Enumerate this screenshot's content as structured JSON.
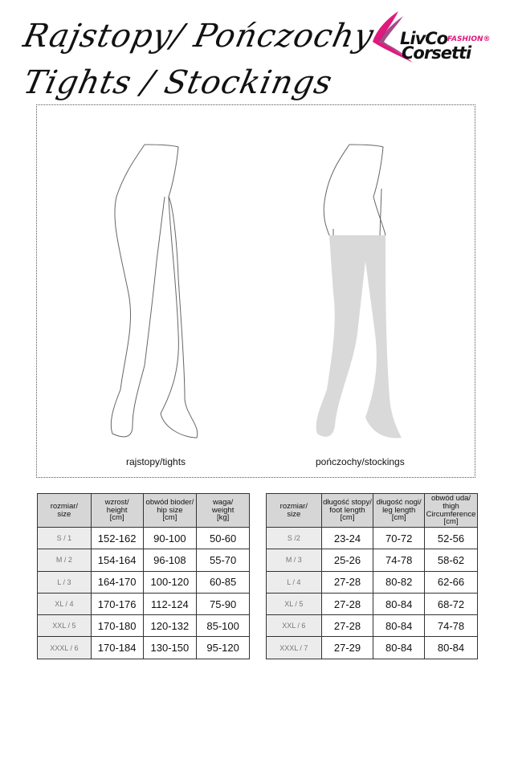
{
  "header": {
    "title_line1": "Rajstopy/ Pończochy",
    "title_line2": "Tights / Stockings"
  },
  "logo": {
    "line1": "LivCo",
    "fashion": "FASHION®",
    "line2": "Corsetti",
    "colors": [
      "#e0197d",
      "#8e1c6b"
    ]
  },
  "figures": {
    "tights_label": "rajstopy/tights",
    "stockings_label": "pończochy/stockings",
    "stocking_fill": "#d9d9d9"
  },
  "tights_table": {
    "headers": [
      [
        "rozmiar/",
        "size"
      ],
      [
        "wzrost/",
        "height",
        "[cm]"
      ],
      [
        "obwód bioder/",
        "hip size",
        "[cm]"
      ],
      [
        "waga/",
        "weight",
        "[kg]"
      ]
    ],
    "rows": [
      [
        "S / 1",
        "152-162",
        "90-100",
        "50-60"
      ],
      [
        "M / 2",
        "154-164",
        "96-108",
        "55-70"
      ],
      [
        "L / 3",
        "164-170",
        "100-120",
        "60-85"
      ],
      [
        "XL / 4",
        "170-176",
        "112-124",
        "75-90"
      ],
      [
        "XXL / 5",
        "170-180",
        "120-132",
        "85-100"
      ],
      [
        "XXXL / 6",
        "170-184",
        "130-150",
        "95-120"
      ]
    ]
  },
  "stockings_table": {
    "headers": [
      [
        "rozmiar/",
        "size"
      ],
      [
        "długość stopy/",
        "foot length",
        "[cm]"
      ],
      [
        "długość nogi/",
        "leg length",
        "[cm]"
      ],
      [
        "obwód uda/",
        "thigh",
        "Circumference",
        "[cm]"
      ]
    ],
    "rows": [
      [
        "S /2",
        "23-24",
        "70-72",
        "52-56"
      ],
      [
        "M / 3",
        "25-26",
        "74-78",
        "58-62"
      ],
      [
        "L / 4",
        "27-28",
        "80-82",
        "62-66"
      ],
      [
        "XL / 5",
        "27-28",
        "80-84",
        "68-72"
      ],
      [
        "XXL / 6",
        "27-28",
        "80-84",
        "74-78"
      ],
      [
        "XXXL / 7",
        "27-29",
        "80-84",
        "80-84"
      ]
    ]
  }
}
